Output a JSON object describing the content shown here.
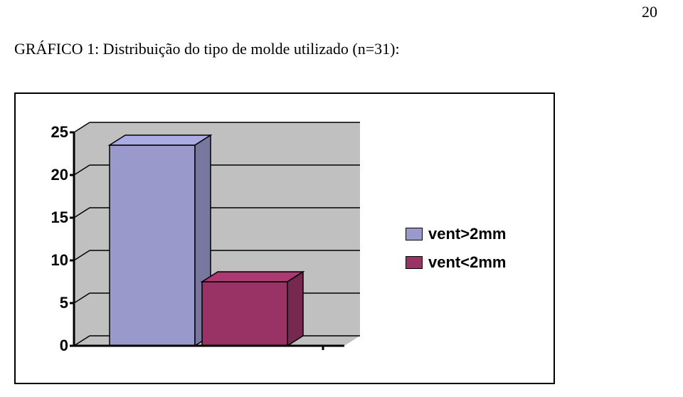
{
  "page_number": "20",
  "caption": "GRÁFICO 1: Distribuição do tipo de molde utilizado (n=31):",
  "chart": {
    "type": "bar-3d",
    "ylim": [
      0,
      25
    ],
    "ytick_step": 5,
    "yticks": [
      0,
      5,
      10,
      15,
      20,
      25
    ],
    "series": [
      {
        "label": "vent>2mm",
        "color": "#9999cc",
        "edge_color": "#000000",
        "value": 23.5
      },
      {
        "label": "vent<2mm",
        "color": "#993366",
        "edge_color": "#000000",
        "value": 7.5
      }
    ],
    "wall_color": "#c0c0c0",
    "floor_color": "#c0c0c0",
    "grid_color": "#000000",
    "background_color": "#ffffff",
    "axis_color": "#000000",
    "label_font_family": "Arial",
    "label_font_weight": "bold",
    "label_fontsize": 22,
    "depth_dx": 22,
    "depth_dy": -14
  }
}
